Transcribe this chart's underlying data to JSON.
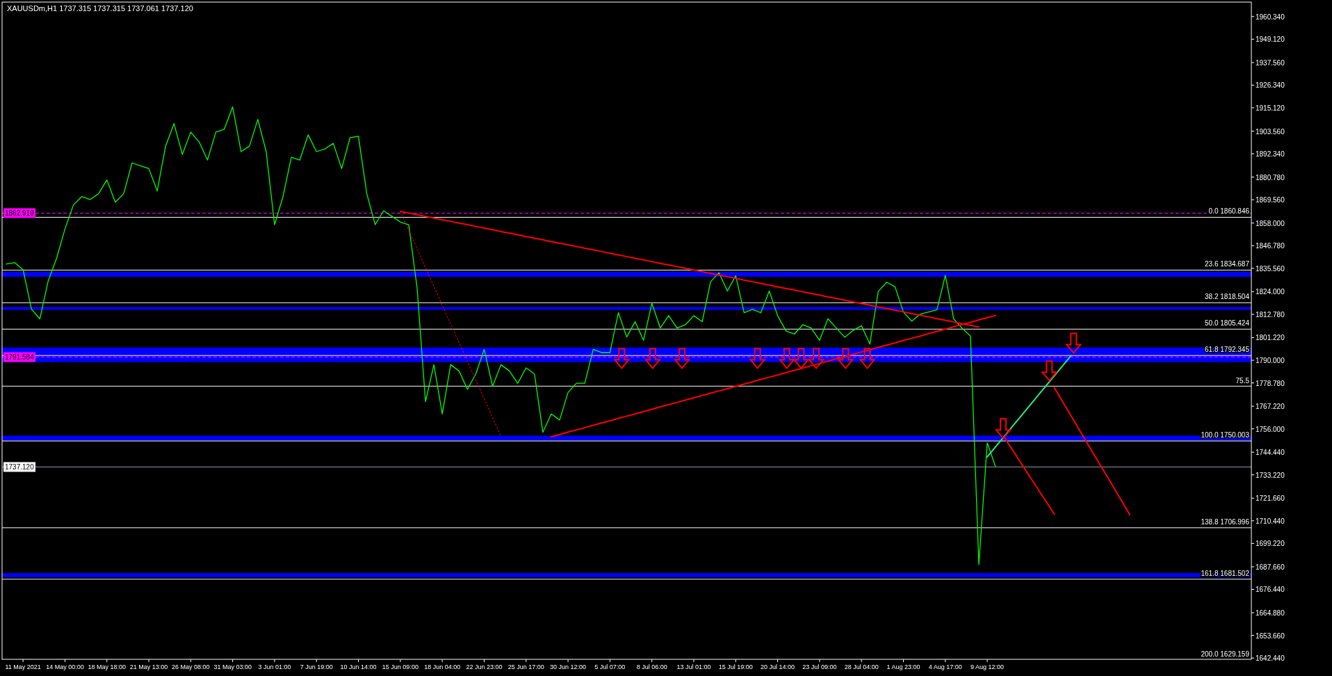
{
  "chart_data": {
    "type": "line",
    "title": "XAUUSDm,H1  1737.315 1737.315 1737.061 1737.120",
    "categories": [
      null,
      null,
      "11 May 2021",
      null,
      null,
      null,
      null,
      "14 May 00:00",
      null,
      null,
      null,
      null,
      "18 May 18:00",
      null,
      null,
      null,
      null,
      "21 May 13:00",
      null,
      null,
      null,
      null,
      "26 May 08:00",
      null,
      null,
      null,
      null,
      "31 May 03:00",
      null,
      null,
      null,
      null,
      "3 Jun 01:00",
      null,
      null,
      null,
      null,
      "7 Jun 19:00",
      null,
      null,
      null,
      null,
      "10 Jun 14:00",
      null,
      null,
      null,
      null,
      "15 Jun 09:00",
      null,
      null,
      null,
      null,
      "18 Jun 04:00",
      null,
      null,
      null,
      null,
      "22 Jun 23:00",
      null,
      null,
      null,
      null,
      "25 Jun 17:00",
      null,
      null,
      null,
      null,
      "30 Jun 12:00",
      null,
      null,
      null,
      null,
      "5 Jul 07:00",
      null,
      null,
      null,
      null,
      "8 Jul 06:00",
      null,
      null,
      null,
      null,
      "13 Jul 01:00",
      null,
      null,
      null,
      null,
      "15 Jul 19:00",
      null,
      null,
      null,
      null,
      "20 Jul 14:00",
      null,
      null,
      null,
      null,
      "23 Jul 09:00",
      null,
      null,
      null,
      null,
      "28 Jul 04:00",
      null,
      null,
      null,
      null,
      "1 Aug 23:00",
      null,
      null,
      null,
      null,
      "4 Aug 17:00",
      null,
      null,
      null,
      null,
      "9 Aug 12:00",
      null,
      null,
      null,
      null,
      null,
      null,
      null,
      null,
      null,
      null,
      null,
      null,
      null,
      null,
      null,
      null,
      null,
      null,
      null,
      null,
      null,
      null,
      null,
      null,
      null,
      null,
      null,
      null,
      null,
      null,
      null
    ],
    "ylim": [
      1641.8,
      1967.5
    ],
    "yticks": [
      {
        "value": 1960.34,
        "label": "1960.340"
      },
      {
        "value": 1949.12,
        "label": "1949.120"
      },
      {
        "value": 1937.56,
        "label": "1937.560"
      },
      {
        "value": 1926.34,
        "label": "1926.340"
      },
      {
        "value": 1915.12,
        "label": "1915.120"
      },
      {
        "value": 1903.56,
        "label": "1903.560"
      },
      {
        "value": 1892.34,
        "label": "1892.340"
      },
      {
        "value": 1880.78,
        "label": "1880.780"
      },
      {
        "value": 1869.56,
        "label": "1869.560"
      },
      {
        "value": 1858,
        "label": "1858.000"
      },
      {
        "value": 1846.78,
        "label": "1846.780"
      },
      {
        "value": 1835.56,
        "label": "1835.560"
      },
      {
        "value": 1824,
        "label": "1824.000"
      },
      {
        "value": 1812.78,
        "label": "1812.780"
      },
      {
        "value": 1801.22,
        "label": "1801.220"
      },
      {
        "value": 1790,
        "label": "1790.000"
      },
      {
        "value": 1778.78,
        "label": "1778.780"
      },
      {
        "value": 1767.22,
        "label": "1767.220"
      },
      {
        "value": 1756,
        "label": "1756.000"
      },
      {
        "value": 1744.44,
        "label": "1744.440"
      },
      {
        "value": 1733.22,
        "label": "1733.220"
      },
      {
        "value": 1721.66,
        "label": "1721.660"
      },
      {
        "value": 1710.44,
        "label": "1710.440"
      },
      {
        "value": 1699.22,
        "label": "1699.220"
      },
      {
        "value": 1687.66,
        "label": "1687.660"
      },
      {
        "value": 1676.44,
        "label": "1676.440"
      },
      {
        "value": 1664.88,
        "label": "1664.880"
      },
      {
        "value": 1653.66,
        "label": "1653.660"
      },
      {
        "value": 1642.44,
        "label": "1642.440"
      }
    ],
    "series": [
      {
        "color": "#00ff00",
        "values": [
          1837.7,
          1838.4,
          1834.9,
          1815.4,
          1810.5,
          1829.3,
          1840.5,
          1855.1,
          1866.9,
          1871.1,
          1869.7,
          1872.5,
          1879.4,
          1868.3,
          1872.5,
          1887.8,
          1886.4,
          1885.0,
          1873.9,
          1896.1,
          1907.3,
          1892.0,
          1903.1,
          1898.2,
          1889.2,
          1903.1,
          1904.5,
          1915.6,
          1893.4,
          1896.1,
          1909.4,
          1893.4,
          1857.2,
          1871.1,
          1890.6,
          1889.2,
          1901.7,
          1893.4,
          1894.7,
          1897.5,
          1885.0,
          1900.3,
          1901.0,
          1872.5,
          1857.2,
          1864.1,
          1861.3,
          1858.5,
          1857.2,
          1825.8,
          1769.5,
          1787.8,
          1763.4,
          1787.8,
          1784.7,
          1775.6,
          1783.2,
          1795.4,
          1777.1,
          1787.8,
          1784.7,
          1778.6,
          1786.2,
          1783.2,
          1754.3,
          1763.4,
          1760.4,
          1774.0,
          1778.6,
          1778.6,
          1795.4,
          1793.8,
          1793.8,
          1813.6,
          1801.5,
          1809.1,
          1799.9,
          1818.2,
          1806.0,
          1812.1,
          1806.0,
          1807.6,
          1812.1,
          1809.1,
          1828.9,
          1833.4,
          1824.3,
          1831.9,
          1813.6,
          1815.2,
          1813.6,
          1824.3,
          1812.1,
          1804.5,
          1803.0,
          1807.6,
          1806.0,
          1799.9,
          1810.6,
          1806.0,
          1801.4,
          1804.8,
          1807.1,
          1798.0,
          1824.1,
          1828.7,
          1826.4,
          1813.9,
          1809.4,
          1812.8,
          1813.9,
          1815.0,
          1832.1,
          1810.5,
          1805.9,
          1802.0,
          1688.8,
          1749.1,
          1737.1,
          null,
          null,
          null,
          null,
          null,
          null,
          null,
          null,
          null,
          null,
          null,
          null,
          null,
          null,
          null,
          null,
          null,
          null,
          null,
          null,
          null,
          null,
          null,
          null,
          null,
          null,
          null,
          null,
          null,
          null
        ]
      },
      {
        "color": "#ff0000",
        "values": [
          null,
          null,
          null,
          null,
          null,
          null,
          null,
          null,
          null,
          null,
          null,
          null,
          null,
          null,
          null,
          null,
          null,
          null,
          null,
          null,
          null,
          null,
          null,
          null,
          null,
          null,
          null,
          null,
          null,
          null,
          null,
          null,
          null,
          null,
          null,
          null,
          null,
          null,
          null,
          null,
          null,
          null,
          null,
          null,
          null,
          null,
          null,
          1863.8,
          1863.0,
          1862.1,
          1861.3,
          1860.5,
          1859.6,
          1858.8,
          1858.0,
          1857.2,
          1856.3,
          1855.5,
          1854.7,
          1853.8,
          1853.0,
          1852.2,
          1851.3,
          1850.5,
          1849.7,
          1848.8,
          1848.0,
          1847.2,
          1846.4,
          1845.5,
          1844.7,
          1843.9,
          1843.0,
          1842.2,
          1841.4,
          1840.5,
          1839.7,
          1838.9,
          1838.0,
          1837.2,
          1836.4,
          1835.6,
          1834.7,
          1833.9,
          1833.1,
          1832.2,
          1831.4,
          1830.6,
          1829.7,
          1828.9,
          1828.1,
          1827.2,
          1826.4,
          1825.6,
          1824.8,
          1823.9,
          1823.1,
          1822.3,
          1821.4,
          1820.6,
          1819.8,
          1818.9,
          1818.1,
          1817.3,
          1816.4,
          1815.6,
          1814.8,
          1814.0,
          1813.1,
          1812.3,
          1811.5,
          1810.6,
          1809.8,
          1809.0,
          1808.1,
          1807.3,
          1806.5,
          null,
          null,
          null,
          null,
          null,
          null,
          null,
          null,
          null,
          null,
          null,
          null,
          null,
          null,
          null,
          null,
          null,
          null,
          null,
          null,
          null,
          null,
          null,
          null,
          null,
          null,
          null,
          null,
          null,
          null,
          null,
          null
        ]
      },
      {
        "color": "#ff0000",
        "values": [
          null,
          null,
          null,
          null,
          null,
          null,
          null,
          null,
          null,
          null,
          null,
          null,
          null,
          null,
          null,
          null,
          null,
          null,
          null,
          null,
          null,
          null,
          null,
          null,
          null,
          null,
          null,
          null,
          null,
          null,
          null,
          null,
          null,
          null,
          null,
          null,
          null,
          null,
          null,
          null,
          null,
          null,
          null,
          null,
          null,
          null,
          null,
          null,
          null,
          null,
          null,
          null,
          null,
          null,
          null,
          null,
          null,
          null,
          null,
          null,
          null,
          null,
          null,
          null,
          null,
          1752.1,
          1753.2,
          1754.4,
          1755.5,
          1756.6,
          1757.8,
          1758.9,
          1760.0,
          1761.2,
          1762.3,
          1763.4,
          1764.6,
          1765.7,
          1766.9,
          1768.0,
          1769.1,
          1770.3,
          1771.4,
          1772.5,
          1773.7,
          1774.8,
          1775.9,
          1777.1,
          1778.2,
          1779.3,
          1780.5,
          1781.6,
          1782.7,
          1783.9,
          1785.0,
          1786.1,
          1787.3,
          1788.4,
          1789.6,
          1790.7,
          1791.8,
          1793.0,
          1794.1,
          1795.2,
          1796.4,
          1797.5,
          1798.6,
          1799.8,
          1800.9,
          1802.0,
          1803.2,
          1804.3,
          1805.4,
          1806.6,
          1807.7,
          1808.8,
          1810.0,
          1811.1,
          1812.2,
          null,
          null,
          null,
          null,
          null,
          null,
          null,
          null,
          null,
          null,
          null,
          null,
          null,
          null,
          null,
          null,
          null,
          null,
          null,
          null,
          null,
          null,
          null,
          null,
          null,
          null,
          null,
          null,
          null,
          null
        ]
      },
      {
        "color": "#ff0000",
        "line_style": "dotted",
        "values": [
          null,
          null,
          null,
          null,
          null,
          null,
          null,
          null,
          null,
          null,
          null,
          null,
          null,
          null,
          null,
          null,
          null,
          null,
          null,
          null,
          null,
          null,
          null,
          null,
          null,
          null,
          null,
          null,
          null,
          null,
          null,
          null,
          null,
          null,
          null,
          null,
          null,
          null,
          null,
          null,
          null,
          null,
          null,
          null,
          null,
          null,
          null,
          1863.8,
          1854.5,
          1845.2,
          1835.9,
          1826.6,
          1817.3,
          1808.0,
          1798.7,
          1789.5,
          1780.2,
          1770.9,
          1761.6,
          1752.3,
          null,
          null,
          null,
          null,
          null,
          null,
          null,
          null,
          null,
          null,
          null,
          null,
          null,
          null,
          null,
          null,
          null,
          null,
          null,
          null,
          null,
          null,
          null,
          null,
          null,
          null,
          null,
          null,
          null,
          null,
          null,
          null,
          null,
          null,
          null,
          null,
          null,
          null,
          null,
          null,
          null,
          null,
          null,
          null,
          null,
          null,
          null,
          null,
          null,
          null,
          null,
          null,
          null,
          null,
          null,
          null,
          null,
          null,
          null,
          null,
          null,
          null,
          null,
          null,
          null,
          null,
          null,
          null,
          null,
          null,
          null,
          null,
          null,
          null,
          null,
          null,
          null,
          null,
          null,
          null,
          null,
          null,
          null,
          null,
          null,
          null,
          null,
          null,
          null
        ]
      },
      {
        "color": "#ff0000",
        "values": [
          null,
          null,
          null,
          null,
          null,
          null,
          null,
          null,
          null,
          null,
          null,
          null,
          null,
          null,
          null,
          null,
          null,
          null,
          null,
          null,
          null,
          null,
          null,
          null,
          null,
          null,
          null,
          null,
          null,
          null,
          null,
          null,
          null,
          null,
          null,
          null,
          null,
          null,
          null,
          null,
          null,
          null,
          null,
          null,
          null,
          null,
          null,
          null,
          null,
          null,
          null,
          null,
          null,
          null,
          null,
          null,
          null,
          null,
          null,
          null,
          null,
          null,
          null,
          null,
          null,
          null,
          null,
          null,
          null,
          null,
          null,
          null,
          null,
          null,
          null,
          null,
          null,
          null,
          null,
          null,
          null,
          null,
          null,
          null,
          null,
          null,
          null,
          null,
          null,
          null,
          null,
          null,
          null,
          null,
          null,
          null,
          null,
          null,
          null,
          null,
          null,
          null,
          null,
          null,
          null,
          null,
          null,
          null,
          null,
          null,
          null,
          null,
          null,
          null,
          null,
          null,
          null,
          null,
          null,
          1752.0,
          1745.6,
          1739.2,
          1732.8,
          1726.5,
          1720.1,
          1713.7,
          null,
          null,
          null,
          null,
          null,
          null,
          null,
          null,
          null,
          null,
          null,
          null,
          null,
          null,
          null,
          null,
          null,
          null,
          null,
          null,
          null,
          null,
          null
        ]
      },
      {
        "color": "#ff0000",
        "values": [
          null,
          null,
          null,
          null,
          null,
          null,
          null,
          null,
          null,
          null,
          null,
          null,
          null,
          null,
          null,
          null,
          null,
          null,
          null,
          null,
          null,
          null,
          null,
          null,
          null,
          null,
          null,
          null,
          null,
          null,
          null,
          null,
          null,
          null,
          null,
          null,
          null,
          null,
          null,
          null,
          null,
          null,
          null,
          null,
          null,
          null,
          null,
          null,
          null,
          null,
          null,
          null,
          null,
          null,
          null,
          null,
          null,
          null,
          null,
          null,
          null,
          null,
          null,
          null,
          null,
          null,
          null,
          null,
          null,
          null,
          null,
          null,
          null,
          null,
          null,
          null,
          null,
          null,
          null,
          null,
          null,
          null,
          null,
          null,
          null,
          null,
          null,
          null,
          null,
          null,
          null,
          null,
          null,
          null,
          null,
          null,
          null,
          null,
          null,
          null,
          null,
          null,
          null,
          null,
          null,
          null,
          null,
          null,
          null,
          null,
          null,
          null,
          null,
          null,
          null,
          null,
          null,
          null,
          null,
          null,
          null,
          null,
          null,
          null,
          null,
          1776.4,
          1769.4,
          1762.4,
          1755.4,
          1748.4,
          1741.4,
          1734.5,
          1727.5,
          1720.5,
          1713.5,
          null,
          null,
          null,
          null,
          null,
          null,
          null,
          null,
          null,
          null,
          null,
          null,
          null,
          null
        ]
      },
      {
        "color": "#22ee88",
        "values": [
          null,
          null,
          null,
          null,
          null,
          null,
          null,
          null,
          null,
          null,
          null,
          null,
          null,
          null,
          null,
          null,
          null,
          null,
          null,
          null,
          null,
          null,
          null,
          null,
          null,
          null,
          null,
          null,
          null,
          null,
          null,
          null,
          null,
          null,
          null,
          null,
          null,
          null,
          null,
          null,
          null,
          null,
          null,
          null,
          null,
          null,
          null,
          null,
          null,
          null,
          null,
          null,
          null,
          null,
          null,
          null,
          null,
          null,
          null,
          null,
          null,
          null,
          null,
          null,
          null,
          null,
          null,
          null,
          null,
          null,
          null,
          null,
          null,
          null,
          null,
          null,
          null,
          null,
          null,
          null,
          null,
          null,
          null,
          null,
          null,
          null,
          null,
          null,
          null,
          null,
          null,
          null,
          null,
          null,
          null,
          null,
          null,
          null,
          null,
          null,
          null,
          null,
          null,
          null,
          null,
          null,
          null,
          null,
          null,
          null,
          null,
          null,
          null,
          null,
          null,
          null,
          null,
          1742.1,
          1747.1,
          1752.1,
          1757.2,
          1762.2,
          1767.2,
          1772.3,
          1777.3,
          1782.3,
          1787.3,
          1792.4,
          null,
          null,
          null,
          null,
          null,
          null,
          null,
          null,
          null,
          null,
          null,
          null,
          null,
          null,
          null,
          null,
          null,
          null,
          null,
          null,
          null
        ]
      }
    ],
    "bands": [
      {
        "axis": "y",
        "from": 1789.1,
        "to": 1796.3,
        "color": "#0000ff"
      },
      {
        "axis": "y",
        "from": 1831.4,
        "to": 1833.8,
        "color": "#0000ff"
      },
      {
        "axis": "y",
        "from": 1815.0,
        "to": 1816.4,
        "color": "#0000ff"
      },
      {
        "axis": "y",
        "from": 1750.2,
        "to": 1752.6,
        "color": "#0000ff"
      },
      {
        "axis": "y",
        "from": 1682.5,
        "to": 1684.5,
        "color": "#0000ff"
      }
    ],
    "ref_lines": [
      {
        "axis": "y",
        "value": 1860.846,
        "label": "0.0 1860.846",
        "color": "#ffffff"
      },
      {
        "axis": "y",
        "value": 1834.687,
        "label": "23.6 1834.687",
        "color": "#ffffff"
      },
      {
        "axis": "y",
        "value": 1818.504,
        "label": "38.2 1818.504",
        "color": "#ffffff"
      },
      {
        "axis": "y",
        "value": 1805.424,
        "label": "50.0 1805.424",
        "color": "#ffffff"
      },
      {
        "axis": "y",
        "value": 1792.345,
        "label": "61.8 1792.345",
        "color": "#ffffff"
      },
      {
        "axis": "y",
        "value": 1777.16,
        "color": "#ffffff"
      },
      {
        "axis": "y",
        "value": 1750.003,
        "label": "100.0 1750.003",
        "color": "#ffffff"
      },
      {
        "axis": "y",
        "value": 1706.996,
        "label": "138.8 1706.996",
        "color": "#ffffff"
      },
      {
        "axis": "y",
        "value": 1681.502,
        "label": "161.8 1681.502",
        "color": "#ffffff"
      },
      {
        "axis": "y",
        "value": 1862.919,
        "label": "1862.919",
        "color": "#ff00ff",
        "line_style": "dashed"
      },
      {
        "axis": "y",
        "value": 1791.584,
        "label": "1791.584",
        "color": "#ff00ff",
        "line_style": "dashed"
      },
      {
        "axis": "y",
        "value": 1737.12,
        "label": "1737.120",
        "color": "#8a9ba8"
      }
    ],
    "annotations": [
      {
        "text": "75.5",
        "y": 1777.16
      },
      "200.0 1629.159"
    ]
  }
}
